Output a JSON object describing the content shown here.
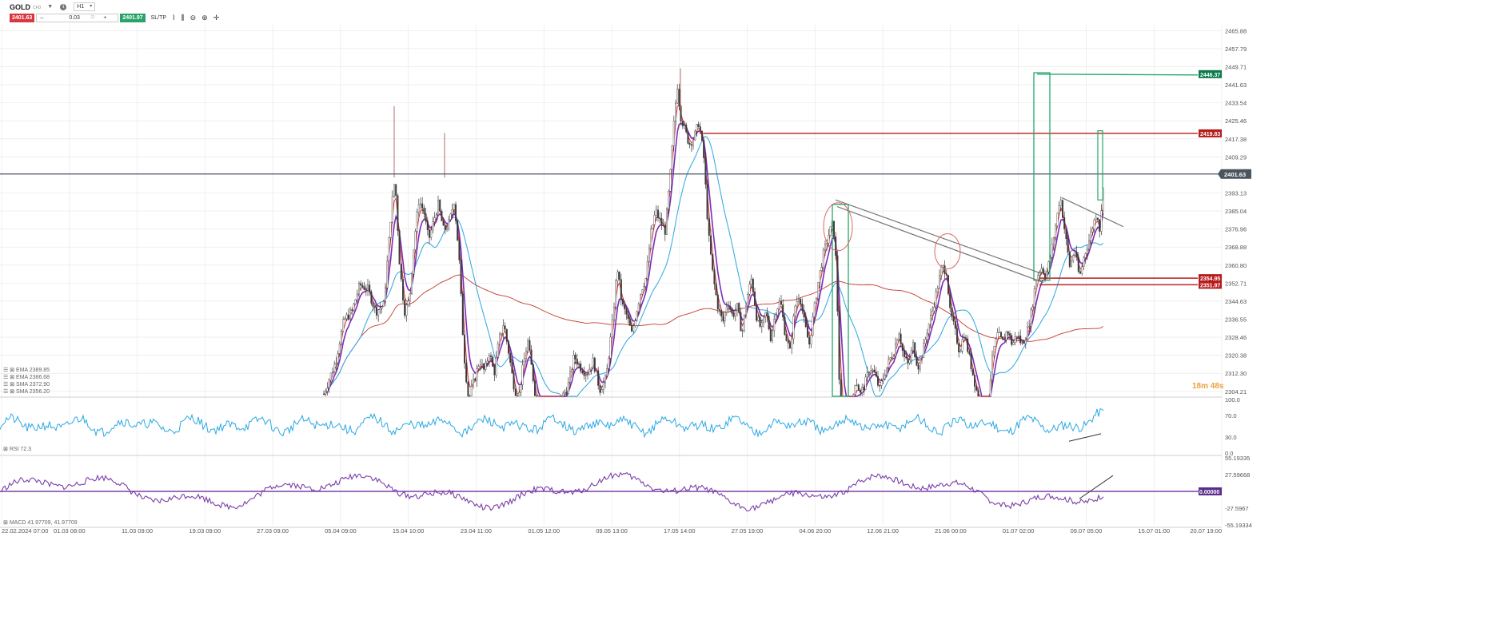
{
  "toolbar": {
    "symbol": "GOLD",
    "symbol_sub": "CFD",
    "timeframe": "H1",
    "sell_price": "2401.63",
    "quantity": "0.03",
    "buy_price": "2401.97",
    "sltp_label": "SL/TP",
    "qty_minus": "–",
    "qty_plus": "+"
  },
  "price_axis": {
    "ticks": [
      "2465.88",
      "2457.79",
      "2449.71",
      "2441.63",
      "2433.54",
      "2425.46",
      "2417.38",
      "2409.29",
      "2401.63",
      "2393.13",
      "2385.04",
      "2376.96",
      "2368.88",
      "2360.80",
      "2352.71",
      "2344.63",
      "2336.55",
      "2328.46",
      "2320.38",
      "2312.30",
      "2304.21"
    ],
    "range": [
      2302.0,
      2468.5
    ],
    "current": "2401.63",
    "levels": [
      {
        "label": "2446.37",
        "price": 2446.37,
        "color": "#0a7a4c"
      },
      {
        "label": "2419.83",
        "price": 2419.83,
        "color": "#b71c1c"
      },
      {
        "label": "2354.95",
        "price": 2354.95,
        "color": "#b71c1c"
      },
      {
        "label": "2351.97",
        "price": 2351.97,
        "color": "#b71c1c"
      }
    ]
  },
  "countdown": "18m 48s",
  "indicators": [
    {
      "label": "EMA 2389.85"
    },
    {
      "label": "EMA 2386.68"
    },
    {
      "label": "SMA 2372.90"
    },
    {
      "label": "SMA 2356.20"
    }
  ],
  "rsi": {
    "label": "RSI 72.3",
    "ticks": [
      "100.0",
      "70.0",
      "30.0",
      "0.0"
    ],
    "range": [
      0,
      100
    ]
  },
  "macd": {
    "label": "MACD 41.97709, 41.97709",
    "ticks": [
      "55.19335",
      "27.59668",
      "0.00000",
      "-27.5967",
      "-55.19334"
    ],
    "current": "0.00000",
    "range": [
      -55.19334,
      55.19335
    ]
  },
  "time_axis": [
    "22.02.2024 07:00",
    "01.03 08:00",
    "11.03 09:00",
    "19.03 09:00",
    "27.03 09:00",
    "05.04 09:00",
    "15.04 10:00",
    "23.04 11:00",
    "01.05 12:00",
    "09.05 13:00",
    "17.05 14:00",
    "27.05 19:00",
    "04.06 20:00",
    "12.06 21:00",
    "21.06 00:00",
    "01.07 02:00",
    "09.07 05:00",
    "15.07 01:00",
    "20.07 19:00"
  ],
  "colors": {
    "grid": "#e6e6e6",
    "axis_text": "#555555",
    "candle": "#3b3b3b",
    "ema_fast": "#e03030",
    "ema_slow": "#7a2db8",
    "sma_fast": "#2aa6e0",
    "sma_slow": "#c0392b",
    "rsi_line": "#2ba8e3",
    "macd_line": "#7a3ea8",
    "current_line": "#4a5560",
    "drawing_green": "#23a86a",
    "drawing_red": "#b71c1c",
    "drawing_gray": "#777777"
  }
}
